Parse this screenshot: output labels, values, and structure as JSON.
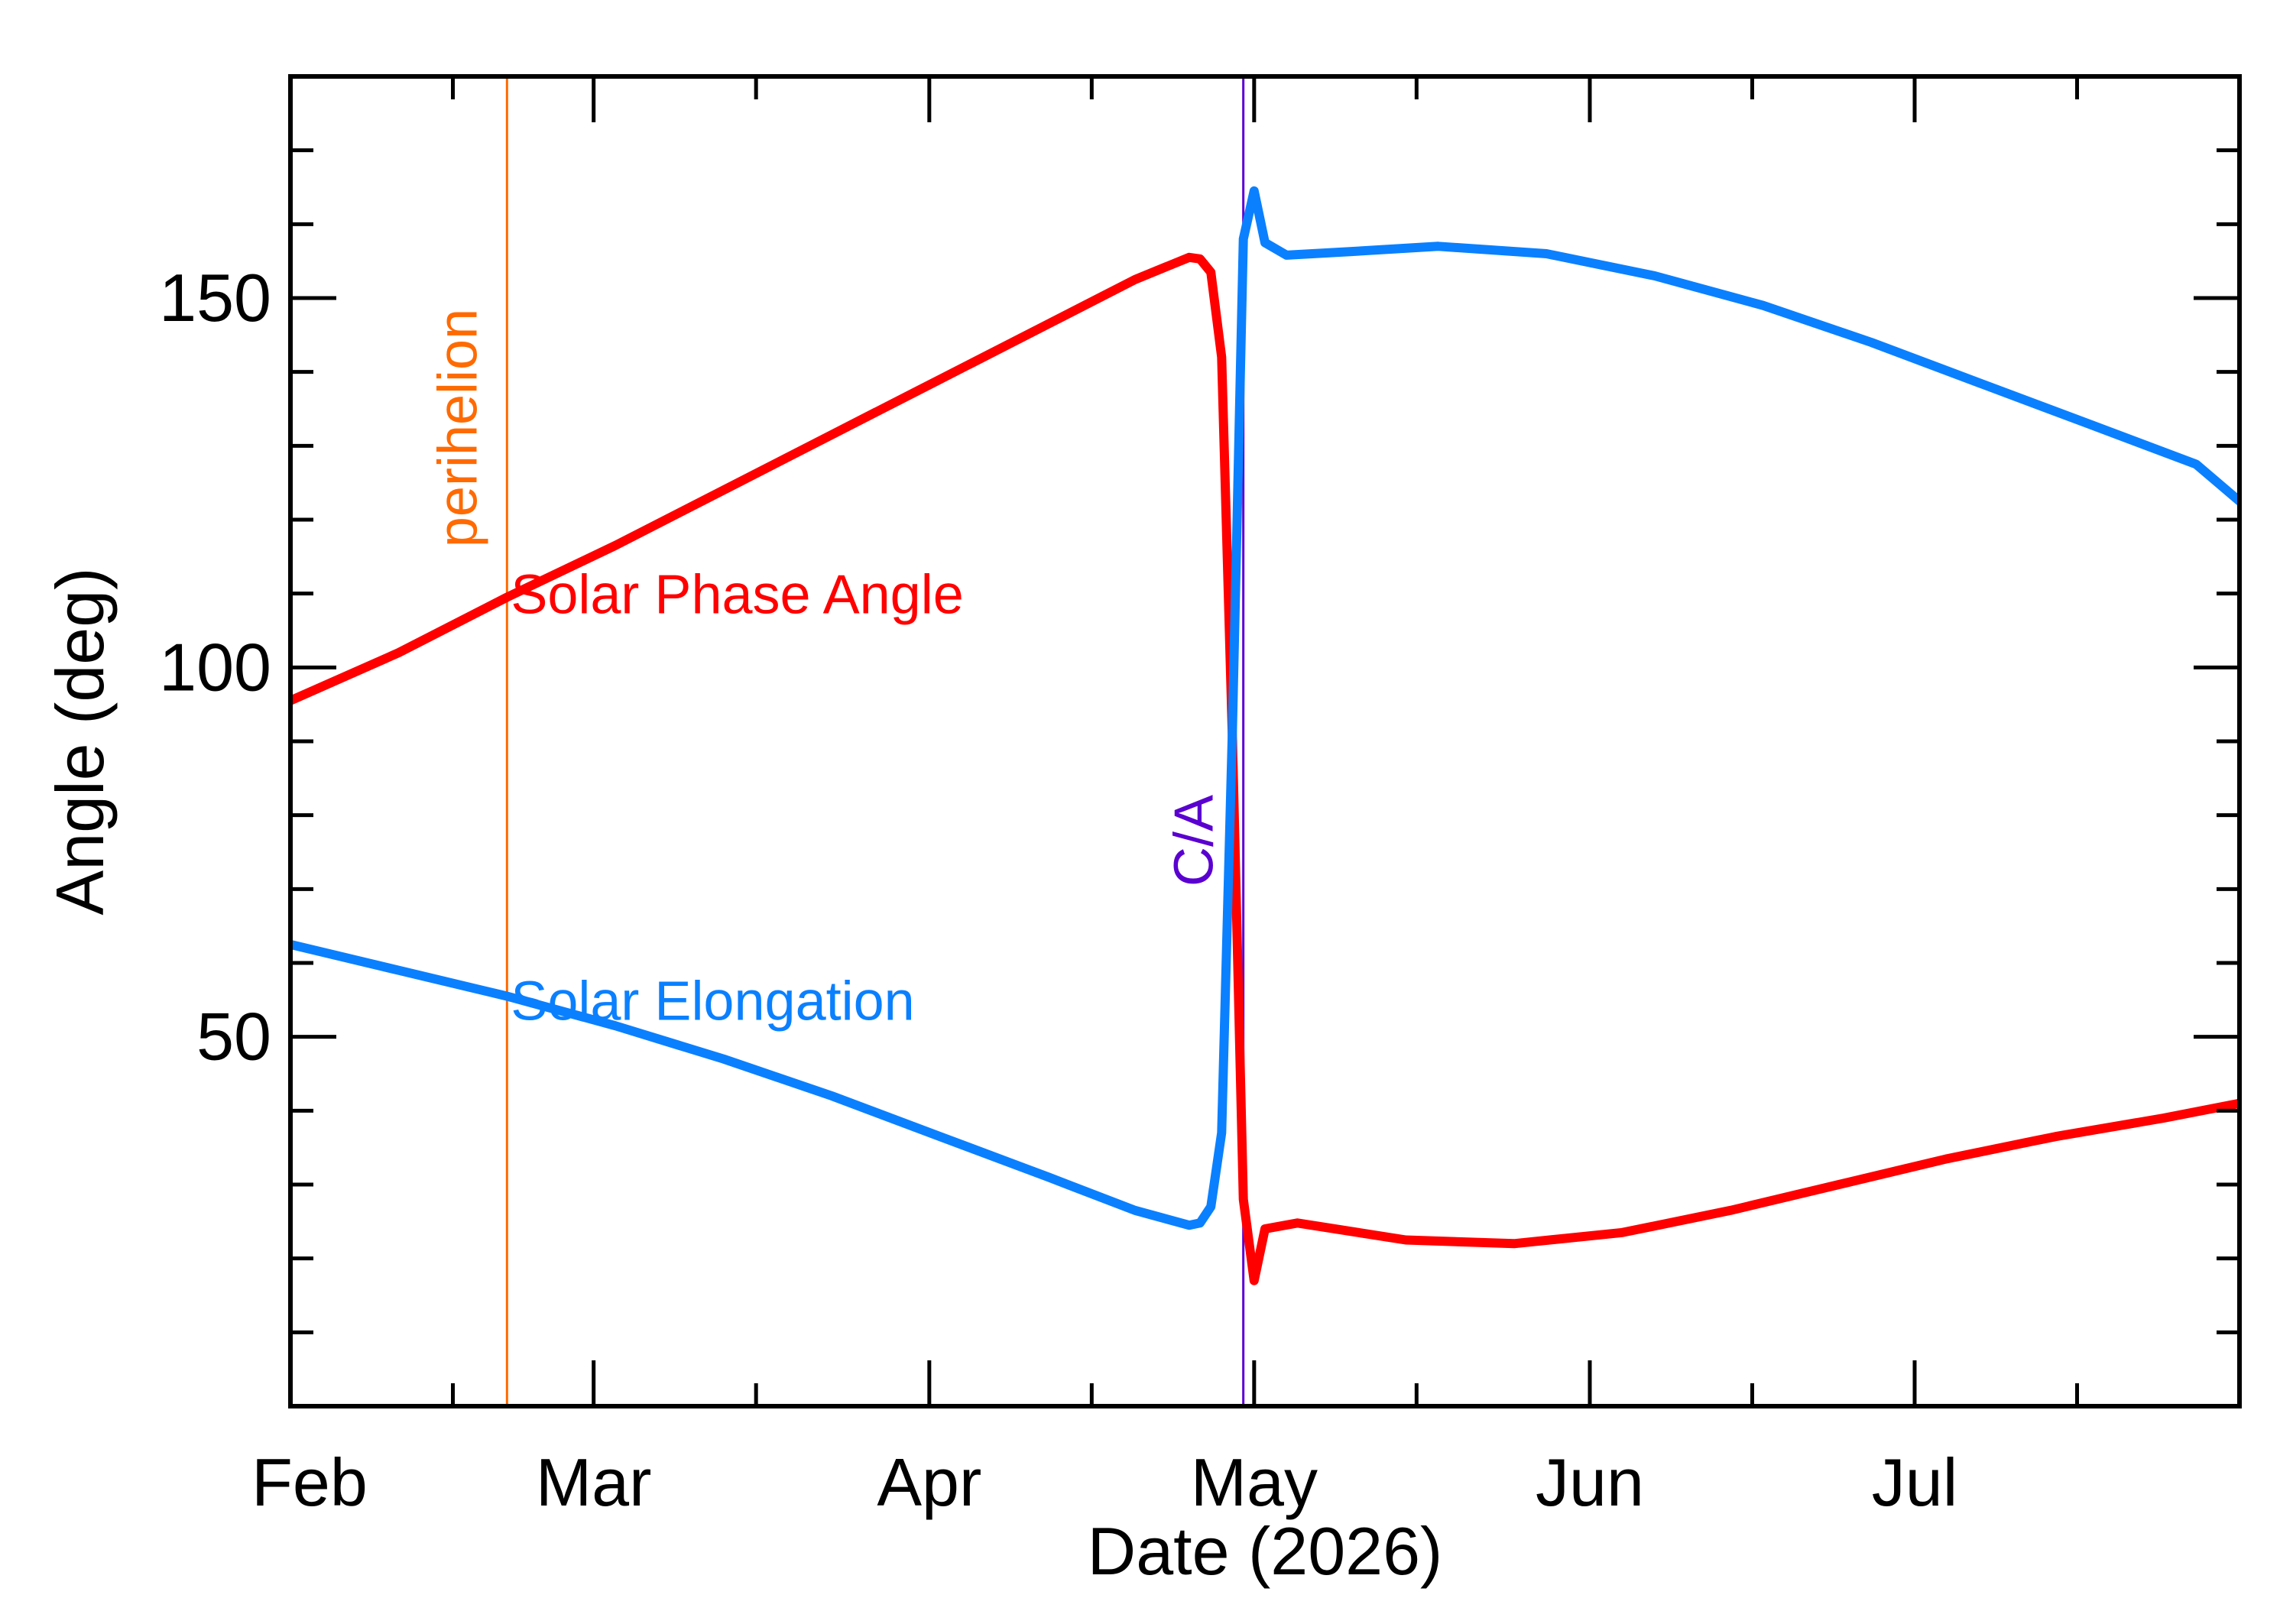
{
  "chart_data": {
    "type": "line",
    "xlabel": "Date (2026)",
    "ylabel": "Angle (deg)",
    "xlim": [
      "2026-02-01",
      "2026-07-31"
    ],
    "ylim": [
      0,
      180
    ],
    "x_major_ticks": [
      "2026-02-01",
      "2026-03-01",
      "2026-04-01",
      "2026-05-01",
      "2026-06-01",
      "2026-07-01"
    ],
    "x_tick_labels": [
      "Feb",
      "Mar",
      "Apr",
      "May",
      "Jun",
      "Jul"
    ],
    "x_minor_ticks": [
      "2026-02-16",
      "2026-03-16",
      "2026-04-16",
      "2026-05-16",
      "2026-06-16",
      "2026-07-16"
    ],
    "y_major_ticks": [
      50,
      100,
      150
    ],
    "y_tick_labels": [
      "50",
      "100",
      "150"
    ],
    "y_minor_step": 10,
    "grid": false,
    "markers": [
      {
        "label": "perihelion",
        "date": "2026-02-21",
        "color": "#ff6a00"
      },
      {
        "label": "C/A",
        "date": "2026-04-30",
        "color": "#5a00d0"
      }
    ],
    "series": [
      {
        "name": "Solar Phase Angle",
        "color": "#ff0000",
        "label_anchor": [
          "2026-02-21",
          110
        ],
        "points": [
          [
            "2026-02-01",
            95.5
          ],
          [
            "2026-02-11",
            102
          ],
          [
            "2026-02-21",
            109.5
          ],
          [
            "2026-03-03",
            116.5
          ],
          [
            "2026-03-13",
            124
          ],
          [
            "2026-03-23",
            131.5
          ],
          [
            "2026-04-02",
            139
          ],
          [
            "2026-04-12",
            146.5
          ],
          [
            "2026-04-20",
            152.5
          ],
          [
            "2026-04-25",
            155.5
          ],
          [
            "2026-04-26",
            155.3
          ],
          [
            "2026-04-27",
            153.5
          ],
          [
            "2026-04-28",
            142
          ],
          [
            "2026-04-29",
            90
          ],
          [
            "2026-04-30",
            28
          ],
          [
            "2026-05-01",
            17
          ],
          [
            "2026-05-02",
            24
          ],
          [
            "2026-05-05",
            24.8
          ],
          [
            "2026-05-15",
            22.5
          ],
          [
            "2026-05-25",
            22
          ],
          [
            "2026-06-04",
            23.5
          ],
          [
            "2026-06-14",
            26.5
          ],
          [
            "2026-06-24",
            30
          ],
          [
            "2026-07-04",
            33.5
          ],
          [
            "2026-07-14",
            36.5
          ],
          [
            "2026-07-24",
            39
          ],
          [
            "2026-07-31",
            41
          ]
        ]
      },
      {
        "name": "Solar Elongation",
        "color": "#0a80ff",
        "label_anchor": [
          "2026-02-21",
          55
        ],
        "points": [
          [
            "2026-02-01",
            62.5
          ],
          [
            "2026-02-11",
            59
          ],
          [
            "2026-02-21",
            55.5
          ],
          [
            "2026-03-03",
            51.5
          ],
          [
            "2026-03-13",
            47
          ],
          [
            "2026-03-23",
            42
          ],
          [
            "2026-04-02",
            36.5
          ],
          [
            "2026-04-12",
            31
          ],
          [
            "2026-04-20",
            26.5
          ],
          [
            "2026-04-25",
            24.5
          ],
          [
            "2026-04-26",
            24.8
          ],
          [
            "2026-04-27",
            27
          ],
          [
            "2026-04-28",
            37
          ],
          [
            "2026-04-29",
            92
          ],
          [
            "2026-04-30",
            158
          ],
          [
            "2026-05-01",
            164.5
          ],
          [
            "2026-05-02",
            157.5
          ],
          [
            "2026-05-04",
            155.8
          ],
          [
            "2026-05-10",
            156.3
          ],
          [
            "2026-05-18",
            157
          ],
          [
            "2026-05-28",
            156
          ],
          [
            "2026-06-07",
            153
          ],
          [
            "2026-06-17",
            149
          ],
          [
            "2026-06-27",
            144
          ],
          [
            "2026-07-07",
            138.5
          ],
          [
            "2026-07-17",
            133
          ],
          [
            "2026-07-27",
            127.5
          ],
          [
            "2026-07-31",
            122.5
          ]
        ]
      }
    ]
  }
}
